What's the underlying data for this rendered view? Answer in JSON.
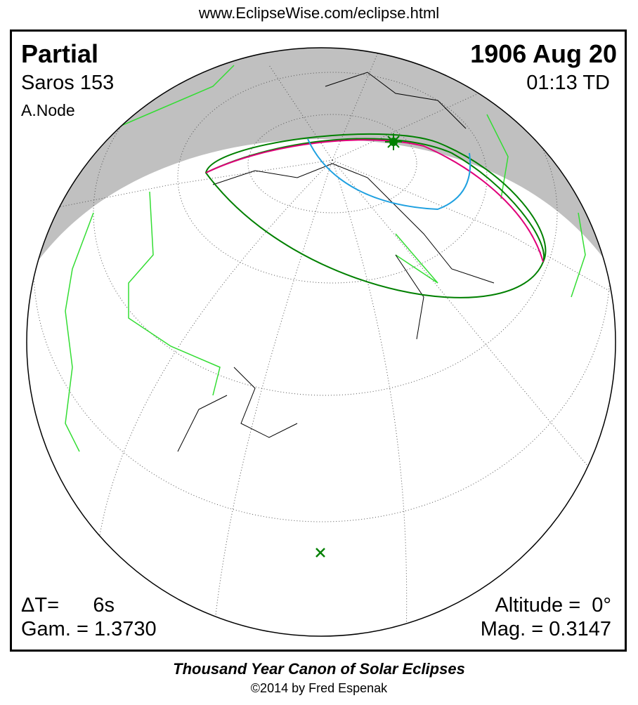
{
  "url": "www.EclipseWise.com/eclipse.html",
  "eclipse": {
    "type": "Partial",
    "saros": "Saros 153",
    "node": "A.Node",
    "date": "1906 Aug 20",
    "time": "01:13 TD",
    "delta_t": "ΔT=      6s",
    "gamma": "Gam. = 1.3730",
    "altitude": "Altitude =  0°",
    "magnitude": "Mag. = 0.3147"
  },
  "footer": {
    "title": "Thousand Year Canon of Solar Eclipses",
    "copyright": "©2014 by Fred Espenak"
  },
  "colors": {
    "night": "#c0c0c0",
    "penumbra_limit": "#008000",
    "max_eclipse_curve": "#e0007a",
    "sunrise_curve": "#1ea0e0",
    "borders": "#33dd33",
    "greatest_eclipse_marker": "#008000"
  },
  "icons": {
    "greatest_eclipse": "star-marker-icon",
    "sub_solar_point": "x-marker-icon"
  }
}
